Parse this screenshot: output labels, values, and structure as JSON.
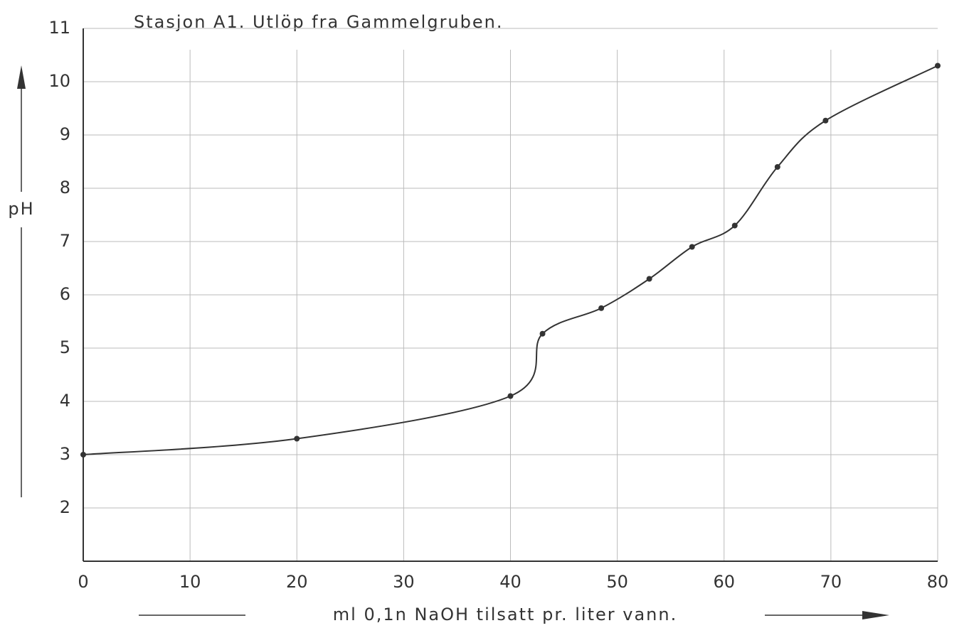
{
  "chart_data": {
    "type": "line",
    "title": "Stasjon A1. Utlöp fra Gammelgruben.",
    "x_label": "ml 0,1n NaOH tilsatt pr. liter vann.",
    "y_label": "pH",
    "x": [
      0,
      20,
      40,
      43,
      48.5,
      53,
      57,
      61,
      65,
      69.5,
      80
    ],
    "series": [
      {
        "color": "#333333",
        "values": [
          3.0,
          3.3,
          4.1,
          5.27,
          5.75,
          6.3,
          6.9,
          7.3,
          8.4,
          9.27,
          10.3
        ]
      }
    ],
    "xlim": [
      0,
      80
    ],
    "ylim": [
      1,
      11
    ],
    "xticks": [
      0,
      10,
      20,
      30,
      40,
      50,
      60,
      70,
      80
    ],
    "yticks": [
      2,
      3,
      4,
      5,
      6,
      7,
      8,
      9,
      10,
      11
    ],
    "grid": true
  }
}
